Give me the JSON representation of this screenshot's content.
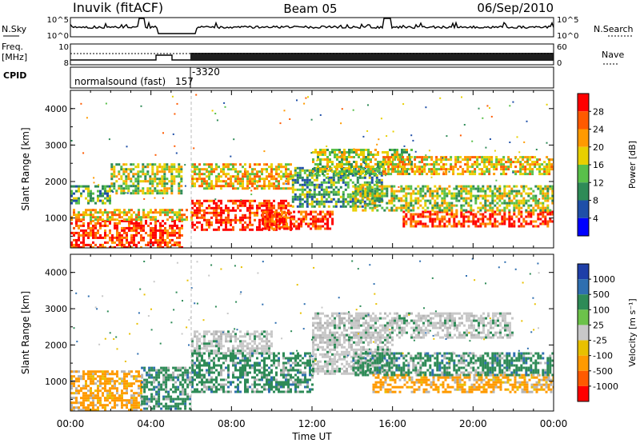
{
  "header": {
    "station": "Inuvik (fitACF)",
    "beam": "Beam 05",
    "date": "06/Sep/2010"
  },
  "strip": {
    "nsky_label": "N.Sky",
    "nsky_ticks": [
      "10^5",
      "10^0"
    ],
    "nsearch_label": "N.Search",
    "nsearch_ticks": [
      "10^5",
      "10^0"
    ],
    "freq_label": "Freq.",
    "freq_unit": "[MHz]",
    "freq_ticks": [
      "10",
      "8"
    ],
    "nave_label": "Nave",
    "nave_ticks": [
      "60",
      "0"
    ],
    "cpid_label": "CPID",
    "cpid_name": "normalsound (fast)",
    "cpid_values": [
      "157",
      "-3320"
    ]
  },
  "colors": {
    "power": [
      "#0000ff",
      "#1f4fa8",
      "#2e8b57",
      "#59c04a",
      "#e8d000",
      "#ff9a00",
      "#ff5a00",
      "#ff0000"
    ],
    "velocity": [
      "#1f3fa8",
      "#2f6fb0",
      "#2e8b57",
      "#6cc24a",
      "#c8c8c8",
      "#e8c000",
      "#ff9a00",
      "#ff5a00",
      "#ff0000"
    ],
    "ground_scatter": "#b4b4b4"
  },
  "chart_data": [
    {
      "type": "heatmap",
      "name": "power",
      "xlabel": "Time UT",
      "ylabel": "Slant Range [km]",
      "xlim": [
        0,
        24
      ],
      "ylim": [
        180,
        4500
      ],
      "x_ticks": [
        "00:00",
        "04:00",
        "08:00",
        "12:00",
        "16:00",
        "20:00",
        "00:00"
      ],
      "y_ticks": [
        "1000",
        "2000",
        "3000",
        "4000"
      ],
      "colorbar_label": "Power [dB]",
      "colorbar_ticks": [
        "4",
        "8",
        "12",
        "16",
        "20",
        "24",
        "28"
      ],
      "regions": [
        {
          "t0": 0.0,
          "t1": 5.5,
          "r0": 220,
          "r1": 950,
          "level": 28
        },
        {
          "t0": 0.0,
          "t1": 6.0,
          "r0": 950,
          "r1": 1250,
          "level": 20
        },
        {
          "t0": 0.0,
          "t1": 2.0,
          "r0": 1400,
          "r1": 1900,
          "level": 12
        },
        {
          "t0": 2.0,
          "t1": 5.5,
          "r0": 1700,
          "r1": 2500,
          "level": 16
        },
        {
          "t0": 6.0,
          "t1": 11.0,
          "r0": 700,
          "r1": 1500,
          "level": 28
        },
        {
          "t0": 6.0,
          "t1": 11.0,
          "r0": 1800,
          "r1": 2500,
          "level": 20
        },
        {
          "t0": 9.5,
          "t1": 13.0,
          "r0": 700,
          "r1": 1200,
          "level": 28
        },
        {
          "t0": 11.0,
          "t1": 15.5,
          "r0": 1300,
          "r1": 2400,
          "level": 12
        },
        {
          "t0": 12.0,
          "t1": 17.0,
          "r0": 2200,
          "r1": 2900,
          "level": 16
        },
        {
          "t0": 15.5,
          "t1": 24.0,
          "r0": 2200,
          "r1": 2700,
          "level": 20
        },
        {
          "t0": 16.5,
          "t1": 24.0,
          "r0": 800,
          "r1": 1200,
          "level": 28
        },
        {
          "t0": 14.0,
          "t1": 24.0,
          "r0": 1200,
          "r1": 1900,
          "level": 16
        }
      ]
    },
    {
      "type": "heatmap",
      "name": "velocity",
      "xlabel": "Time UT",
      "ylabel": "Slant Range [km]",
      "xlim": [
        0,
        24
      ],
      "ylim": [
        180,
        4500
      ],
      "x_ticks": [
        "00:00",
        "04:00",
        "08:00",
        "12:00",
        "16:00",
        "20:00",
        "00:00"
      ],
      "y_ticks": [
        "1000",
        "2000",
        "3000",
        "4000"
      ],
      "colorbar_label": "Velocity [m s⁻¹]",
      "colorbar_ticks": [
        "1000",
        "500",
        "100",
        "25",
        "-25",
        "-100",
        "-500",
        "-1000"
      ],
      "regions": [
        {
          "t0": 0.0,
          "t1": 3.5,
          "r0": 220,
          "r1": 1300,
          "level": -500
        },
        {
          "t0": 3.5,
          "t1": 6.0,
          "r0": 220,
          "r1": 1400,
          "level": 100
        },
        {
          "t0": 6.0,
          "t1": 12.0,
          "r0": 700,
          "r1": 1800,
          "level": 100
        },
        {
          "t0": 6.0,
          "t1": 10.0,
          "r0": 1800,
          "r1": 2400,
          "level": 25
        },
        {
          "t0": 12.0,
          "t1": 16.0,
          "r0": 1200,
          "r1": 2300,
          "level": 25
        },
        {
          "t0": 12.0,
          "t1": 22.0,
          "r0": 2200,
          "r1": 2900,
          "level": 25
        },
        {
          "t0": 15.0,
          "t1": 24.0,
          "r0": 700,
          "r1": 1200,
          "level": -500
        },
        {
          "t0": 14.0,
          "t1": 24.0,
          "r0": 1200,
          "r1": 1800,
          "level": 100
        }
      ]
    }
  ]
}
